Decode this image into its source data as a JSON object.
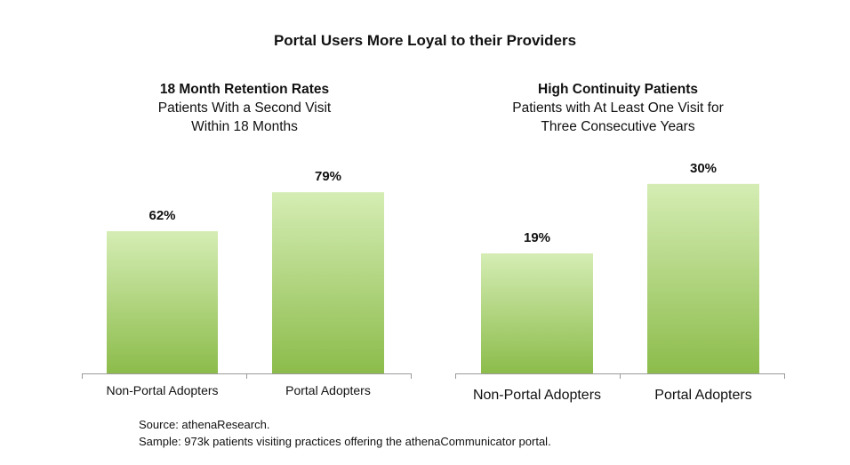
{
  "title": "Portal Users More Loyal to their Providers",
  "chart_data": [
    {
      "type": "bar",
      "title": "18 Month Retention Rates",
      "subtitle_lines": [
        "Patients With a Second Visit",
        "Within 18 Months"
      ],
      "categories": [
        "Non-Portal Adopters",
        "Portal Adopters"
      ],
      "values": [
        62,
        79
      ],
      "data_labels": [
        "62%",
        "79%"
      ],
      "ylim": [
        0,
        100
      ],
      "grid": false,
      "legend": "none",
      "bar_color_top": "#d5edb4",
      "bar_color_bottom": "#8cbc4b"
    },
    {
      "type": "bar",
      "title": "High Continuity Patients",
      "subtitle_lines": [
        "Patients with At Least One Visit for",
        "Three Consecutive Years"
      ],
      "categories": [
        "Non-Portal Adopters",
        "Portal Adopters"
      ],
      "values": [
        19,
        30
      ],
      "data_labels": [
        "19%",
        "30%"
      ],
      "ylim": [
        0,
        38
      ],
      "grid": false,
      "legend": "none",
      "bar_color_top": "#d5edb4",
      "bar_color_bottom": "#8cbc4b"
    }
  ],
  "footer": {
    "source": "Source: athenaResearch.",
    "sample": "Sample: 973k patients visiting practices offering the athenaCommunicator portal."
  }
}
